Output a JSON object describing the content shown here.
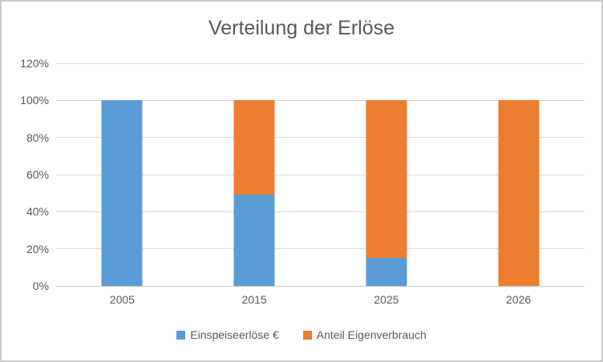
{
  "chart_data": {
    "type": "bar",
    "stacked": true,
    "title": "Verteilung der Erlöse",
    "categories": [
      "2005",
      "2015",
      "2025",
      "2026"
    ],
    "series": [
      {
        "name": "Einspeiseerlöse €",
        "color": "#5B9BD5",
        "values": [
          100,
          49,
          15,
          0
        ]
      },
      {
        "name": "Anteil Eigenverbrauch",
        "color": "#ED7D31",
        "values": [
          0,
          51,
          85,
          100
        ]
      }
    ],
    "xlabel": "",
    "ylabel": "",
    "ylim": [
      0,
      120
    ],
    "y_ticks": [
      0,
      20,
      40,
      60,
      80,
      100,
      120
    ],
    "y_tick_suffix": "%",
    "grid": true,
    "legend_position": "bottom",
    "colors": {
      "text": "#595959",
      "gridline": "#d9d9d9",
      "axis_line": "#c8c8c8",
      "border": "#c9c9c9",
      "background": "#ffffff"
    }
  }
}
